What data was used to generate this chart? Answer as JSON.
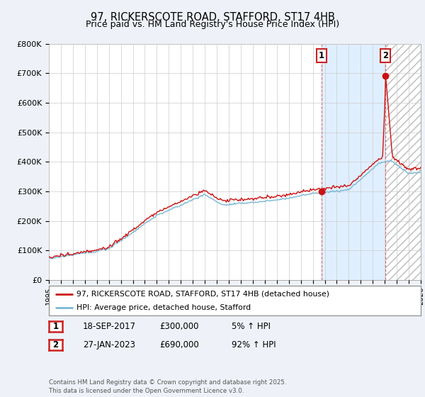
{
  "title": "97, RICKERSCOTE ROAD, STAFFORD, ST17 4HB",
  "subtitle": "Price paid vs. HM Land Registry's House Price Index (HPI)",
  "ylim": [
    0,
    800000
  ],
  "yticks": [
    0,
    100000,
    200000,
    300000,
    400000,
    500000,
    600000,
    700000,
    800000
  ],
  "ytick_labels": [
    "£0",
    "£100K",
    "£200K",
    "£300K",
    "£400K",
    "£500K",
    "£600K",
    "£700K",
    "£800K"
  ],
  "x_start_year": 1995,
  "x_end_year": 2026,
  "hpi_color": "#7bb8d4",
  "price_color": "#cc1111",
  "shade_color": "#ddeeff",
  "transaction1_date": 2017.72,
  "transaction1_price": 300000,
  "transaction1_label": "1",
  "transaction2_date": 2023.08,
  "transaction2_price": 690000,
  "transaction2_label": "2",
  "legend_line1": "97, RICKERSCOTE ROAD, STAFFORD, ST17 4HB (detached house)",
  "legend_line2": "HPI: Average price, detached house, Stafford",
  "table_row1": [
    "1",
    "18-SEP-2017",
    "£300,000",
    "5% ↑ HPI"
  ],
  "table_row2": [
    "2",
    "27-JAN-2023",
    "£690,000",
    "92% ↑ HPI"
  ],
  "footer": "Contains HM Land Registry data © Crown copyright and database right 2025.\nThis data is licensed under the Open Government Licence v3.0.",
  "bg_color": "#eef2f8",
  "plot_bg": "#ffffff",
  "grid_color": "#cccccc",
  "title_fontsize": 10.5,
  "subtitle_fontsize": 9,
  "tick_fontsize": 8
}
